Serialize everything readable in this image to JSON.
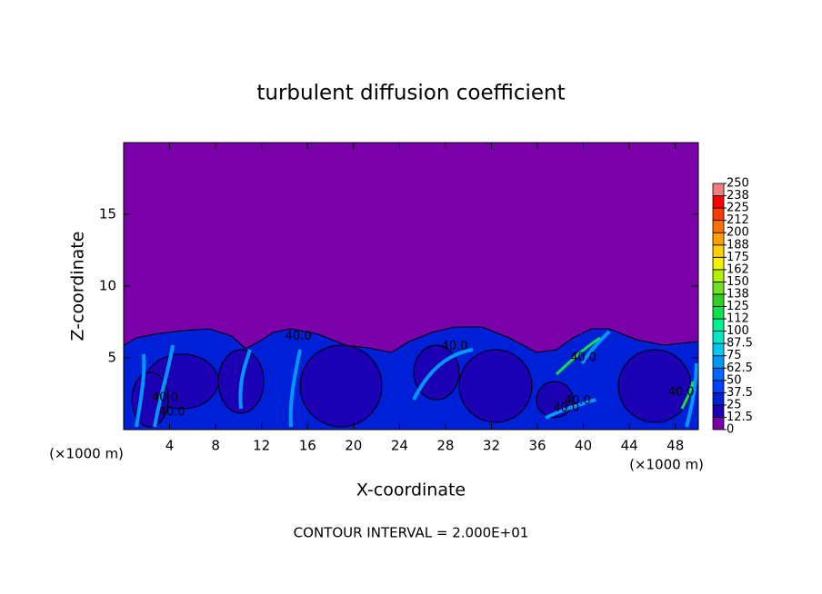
{
  "chart_data": {
    "type": "contour",
    "title": "turbulent diffusion coefficient",
    "x_label": "X-coordinate",
    "y_label": "Z-coordinate",
    "x_unit": "(×1000 m)",
    "x_unit_right": "(×1000 m)",
    "footer": "CONTOUR INTERVAL = 2.000E+01",
    "xlim": [
      0,
      50
    ],
    "xticks": [
      4,
      8,
      12,
      16,
      20,
      24,
      28,
      32,
      36,
      40,
      44,
      48
    ],
    "ylim": [
      0,
      20
    ],
    "yticks": [
      5,
      10,
      15
    ],
    "contour_labels": [
      {
        "text": "40.0",
        "x": 15.2,
        "y": 6.5
      },
      {
        "text": "40.0",
        "x": 28.8,
        "y": 5.8
      },
      {
        "text": "40.0",
        "x": 3.6,
        "y": 2.2
      },
      {
        "text": "40.0",
        "x": 4.2,
        "y": 1.2
      },
      {
        "text": "40.0",
        "x": 38.5,
        "y": 1.5
      },
      {
        "text": "40.0",
        "x": 39.5,
        "y": 2.0
      },
      {
        "text": "40.0",
        "x": 40.0,
        "y": 5.0
      },
      {
        "text": "40.0",
        "x": 48.5,
        "y": 2.6
      }
    ],
    "colorbar": {
      "levels": [
        0,
        12.5,
        25,
        37.5,
        50,
        62.5,
        75,
        87.5,
        100,
        {
          "value": 112.5,
          "label": "112"
        },
        125,
        {
          "value": 137.5,
          "label": "138"
        },
        150,
        {
          "value": 162.5,
          "label": "162"
        },
        175,
        {
          "value": 187.5,
          "label": "188"
        },
        200,
        {
          "value": 212.5,
          "label": "212"
        },
        225,
        {
          "value": 237.5,
          "label": "238"
        },
        250
      ],
      "colors": [
        "#7a00a8",
        "#1c00b4",
        "#0020d8",
        "#0040ff",
        "#0068ff",
        "#0098ff",
        "#00c8f0",
        "#00e8c8",
        "#00f090",
        "#10e050",
        "#30d020",
        "#70e020",
        "#b0f000",
        "#f0f000",
        "#ffd000",
        "#ffa000",
        "#ff7000",
        "#ff3800",
        "#ff0000",
        "#f08080"
      ]
    }
  }
}
